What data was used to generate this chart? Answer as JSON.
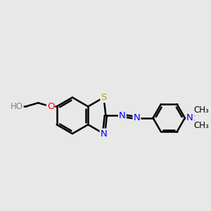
{
  "bg_color": "#e8e8e8",
  "bond_color": "#000000",
  "bond_width": 1.8,
  "dbo": 0.055,
  "font_size": 9.5,
  "font_size_small": 8.5,
  "figsize": [
    3.0,
    3.0
  ],
  "dpi": 100,
  "xlim": [
    0.5,
    10.5
  ],
  "ylim": [
    2.5,
    7.5
  ]
}
